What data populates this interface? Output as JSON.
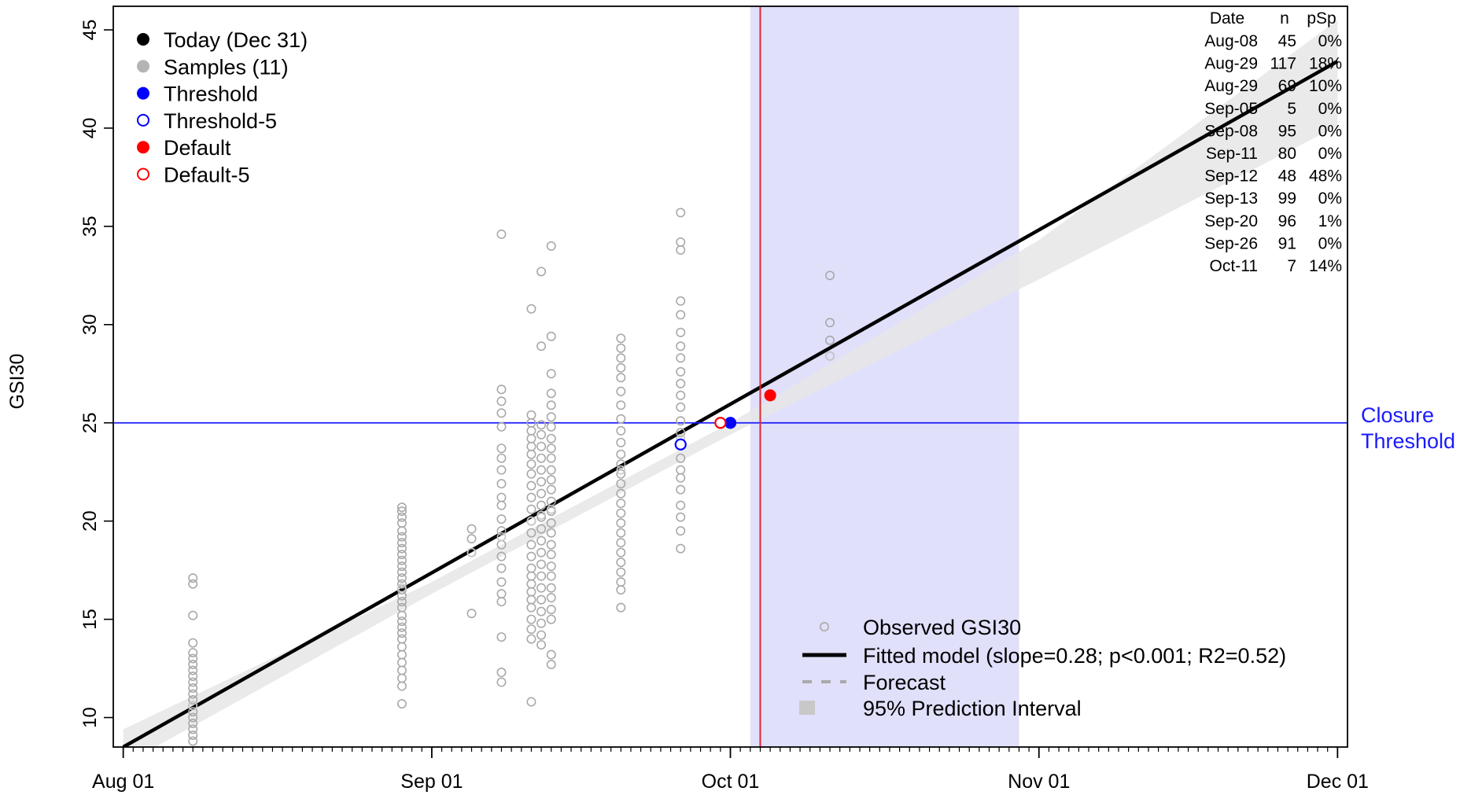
{
  "chart_data": {
    "type": "scatter",
    "ylabel": "GSI30",
    "xlabel": "",
    "ylim": [
      8.5,
      46.2
    ],
    "xlim": [
      "2022-07-31",
      "2022-12-02"
    ],
    "x_ticks": [
      {
        "date": "2022-08-01",
        "label": "Aug 01"
      },
      {
        "date": "2022-09-01",
        "label": "Sep 01"
      },
      {
        "date": "2022-10-01",
        "label": "Oct 01"
      },
      {
        "date": "2022-11-01",
        "label": "Nov 01"
      },
      {
        "date": "2022-12-01",
        "label": "Dec 01"
      }
    ],
    "y_ticks": [
      10,
      15,
      20,
      25,
      30,
      35,
      40,
      45
    ],
    "grid": false,
    "fitted_model": {
      "start": {
        "date": "2022-08-01",
        "y": 8.5
      },
      "end": {
        "date": "2022-12-01",
        "y": 43.4
      },
      "slope": 0.28,
      "label": "Fitted model (slope=0.28; p<0.001; R2=0.52)"
    },
    "prediction_interval": {
      "points": [
        {
          "date": "2022-08-01",
          "lower": 7.6,
          "upper": 9.4
        },
        {
          "date": "2022-09-01",
          "lower": 16.3,
          "upper": 16.9
        },
        {
          "date": "2022-10-01",
          "lower": 24.4,
          "upper": 25.0
        },
        {
          "date": "2022-11-01",
          "lower": 32.3,
          "upper": 34.3
        },
        {
          "date": "2022-12-01",
          "lower": 40.1,
          "upper": 45.5
        }
      ]
    },
    "shaded_period": {
      "start": "2022-10-03",
      "end": "2022-10-30",
      "color": "#e0e0fb"
    },
    "threshold_line": {
      "y": 25,
      "color": "#1a1aff",
      "label_line1": "Closure",
      "label_line2": "Threshold"
    },
    "default_vline": {
      "date": "2022-10-04",
      "color": "#e32636"
    },
    "special_points": [
      {
        "name": "Threshold",
        "date": "2022-10-01",
        "y": 25.0,
        "color": "#0000ff",
        "filled": true
      },
      {
        "name": "Threshold-5",
        "date": "2022-09-26",
        "y": 23.9,
        "color": "#0000ff",
        "filled": false
      },
      {
        "name": "Default",
        "date": "2022-10-05",
        "y": 26.4,
        "color": "#ff0000",
        "filled": true
      },
      {
        "name": "Default-5",
        "date": "2022-09-30",
        "y": 25.0,
        "color": "#ff0000",
        "filled": false
      }
    ],
    "fitted_markers": [
      {
        "date": "2022-08-08",
        "y": 10.6
      },
      {
        "date": "2022-08-29",
        "y": 16.6
      },
      {
        "date": "2022-09-05",
        "y": 18.4
      },
      {
        "date": "2022-09-08",
        "y": 19.2
      },
      {
        "date": "2022-09-11",
        "y": 20.0
      },
      {
        "date": "2022-09-12",
        "y": 20.3
      },
      {
        "date": "2022-09-13",
        "y": 20.6
      },
      {
        "date": "2022-09-20",
        "y": 22.6
      },
      {
        "date": "2022-09-26",
        "y": 24.2
      },
      {
        "date": "2022-10-11",
        "y": 28.4
      }
    ],
    "observations": [
      {
        "date": "2022-08-08",
        "values": [
          17.1,
          16.8,
          15.2,
          13.8,
          13.3,
          13.0,
          12.7,
          12.4,
          12.1,
          11.8,
          11.5,
          11.2,
          10.9,
          10.6,
          10.3,
          10.0,
          9.7,
          9.4,
          9.1,
          8.8
        ]
      },
      {
        "date": "2022-08-29",
        "values": [
          20.7,
          20.5,
          20.2,
          19.9,
          19.5,
          19.2,
          18.9,
          18.6,
          18.3,
          18.0,
          17.7,
          17.4,
          17.1,
          16.8,
          16.5,
          16.2,
          15.9,
          15.6,
          15.2,
          14.9,
          14.6,
          14.3,
          14.0,
          13.6,
          13.2,
          12.8,
          12.4,
          12.0,
          11.6,
          10.7
        ]
      },
      {
        "date": "2022-09-05",
        "values": [
          19.6,
          19.1,
          18.4,
          15.3
        ]
      },
      {
        "date": "2022-09-08",
        "values": [
          34.6,
          26.7,
          26.1,
          25.5,
          24.8,
          23.7,
          23.2,
          22.6,
          21.9,
          21.2,
          20.8,
          20.1,
          19.5,
          18.8,
          18.2,
          17.6,
          16.9,
          16.3,
          15.9,
          14.1,
          12.3,
          11.8
        ]
      },
      {
        "date": "2022-09-11",
        "values": [
          30.8,
          25.4,
          25.0,
          24.6,
          24.2,
          23.8,
          23.4,
          22.9,
          22.4,
          21.8,
          21.2,
          20.6,
          20.0,
          19.4,
          18.8,
          18.2,
          17.6,
          17.2,
          16.8,
          16.4,
          16.0,
          15.6,
          15.0,
          14.5,
          14.0,
          10.8
        ]
      },
      {
        "date": "2022-09-12",
        "values": [
          32.7,
          28.9,
          24.9,
          24.4,
          23.8,
          23.2,
          22.6,
          22.0,
          21.4,
          20.8,
          20.2,
          19.6,
          19.0,
          18.4,
          17.8,
          17.2,
          16.6,
          16.0,
          15.4,
          14.8,
          14.2,
          13.7
        ]
      },
      {
        "date": "2022-09-13",
        "values": [
          34.0,
          29.4,
          27.5,
          26.5,
          25.9,
          25.3,
          24.8,
          24.2,
          23.7,
          23.2,
          22.6,
          22.1,
          21.6,
          21.0,
          20.5,
          19.9,
          19.4,
          18.8,
          18.3,
          17.7,
          17.2,
          16.6,
          16.1,
          15.5,
          15.0,
          13.2,
          12.7
        ]
      },
      {
        "date": "2022-09-20",
        "values": [
          29.3,
          28.8,
          28.3,
          27.8,
          27.3,
          26.6,
          25.9,
          25.2,
          24.6,
          24.0,
          23.4,
          22.9,
          22.4,
          21.9,
          21.4,
          20.9,
          20.4,
          19.9,
          19.4,
          18.9,
          18.4,
          17.9,
          17.4,
          16.9,
          16.5,
          15.6
        ]
      },
      {
        "date": "2022-09-26",
        "values": [
          35.7,
          34.2,
          33.8,
          31.2,
          30.5,
          29.6,
          28.9,
          28.3,
          27.6,
          27.0,
          26.4,
          25.8,
          25.1,
          24.5,
          23.9,
          23.2,
          22.6,
          22.2,
          21.6,
          20.8,
          20.2,
          19.5,
          18.6
        ]
      },
      {
        "date": "2022-10-11",
        "values": [
          32.5,
          30.1,
          29.2,
          28.4
        ]
      }
    ],
    "legend_top_left": [
      {
        "label": "Today (Dec 31)",
        "color": "#000000",
        "filled": true
      },
      {
        "label": "Samples (11)",
        "color": "#b4b4b4",
        "filled": true
      },
      {
        "label": "Threshold",
        "color": "#0000ff",
        "filled": true
      },
      {
        "label": "Threshold-5",
        "color": "#0000ff",
        "filled": false
      },
      {
        "label": "Default",
        "color": "#ff0000",
        "filled": true
      },
      {
        "label": "Default-5",
        "color": "#ff0000",
        "filled": false
      }
    ],
    "legend_bottom": [
      {
        "label": "Observed GSI30",
        "kind": "open-circle"
      },
      {
        "label": "Fitted model (slope=0.28; p<0.001; R2=0.52)",
        "kind": "thick-line"
      },
      {
        "label": "Forecast",
        "kind": "dashed-line"
      },
      {
        "label": "95% Prediction Interval",
        "kind": "square"
      }
    ],
    "sample_table": {
      "headers": [
        "Date",
        "n",
        "pSp"
      ],
      "rows": [
        [
          "Aug-08",
          "45",
          "0%"
        ],
        [
          "Aug-29",
          "117",
          "18%"
        ],
        [
          "Aug-29",
          "69",
          "10%"
        ],
        [
          "Sep-05",
          "5",
          "0%"
        ],
        [
          "Sep-08",
          "95",
          "0%"
        ],
        [
          "Sep-11",
          "80",
          "0%"
        ],
        [
          "Sep-12",
          "48",
          "48%"
        ],
        [
          "Sep-13",
          "99",
          "0%"
        ],
        [
          "Sep-20",
          "96",
          "1%"
        ],
        [
          "Sep-26",
          "91",
          "0%"
        ],
        [
          "Oct-11",
          "7",
          "14%"
        ]
      ]
    },
    "colors": {
      "observed": "#a9a9a9",
      "fitted_marker": "#404040",
      "fitted_line": "#000000",
      "prediction_band": "#e6e6e6",
      "legend_square": "#c8c8c8"
    }
  }
}
